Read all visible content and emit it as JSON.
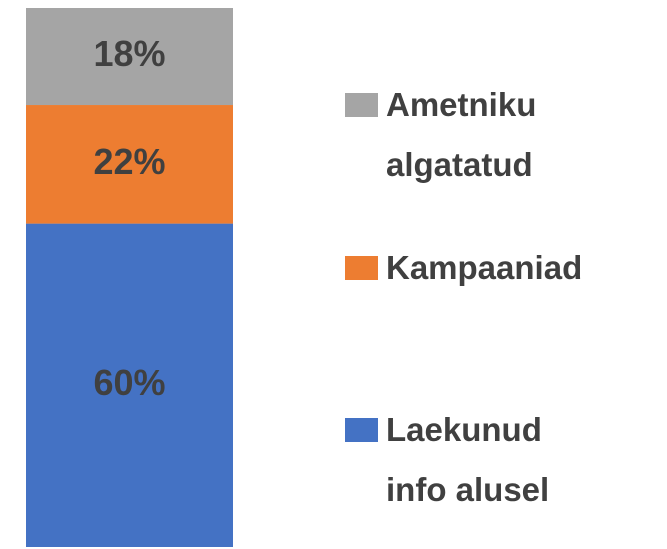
{
  "chart_data": {
    "type": "bar",
    "stacked": true,
    "ylim": [
      0,
      100
    ],
    "series": [
      {
        "name": "Laekunud info alusel",
        "color": "#4472c4",
        "values": [
          60
        ],
        "value_labels": [
          "60%"
        ]
      },
      {
        "name": "Kampaaniad",
        "color": "#ed7d31",
        "values": [
          22
        ],
        "value_labels": [
          "22%"
        ]
      },
      {
        "name": "Ametniku algatatud",
        "color": "#a5a5a5",
        "values": [
          18
        ],
        "value_labels": [
          "18%"
        ]
      }
    ]
  }
}
